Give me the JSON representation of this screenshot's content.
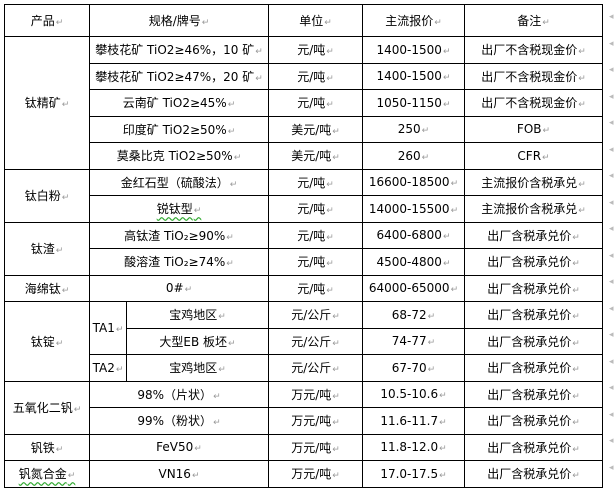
{
  "headers": [
    "产品",
    "规格/牌号",
    "单位",
    "主流报价",
    "备注"
  ],
  "rows": {
    "ti_conc": {
      "product": "钛精矿",
      "items": [
        {
          "spec": "攀枝花矿 TiO2≥46%，10 矿",
          "unit": "元/吨",
          "price": "1400-1500",
          "note": "出厂不含税现金价"
        },
        {
          "spec": "攀枝花矿 TiO2≥47%，20 矿",
          "unit": "元/吨",
          "price": "1400-1500",
          "note": "出厂不含税现金价"
        },
        {
          "spec": "云南矿 TiO2≥45%",
          "unit": "元/吨",
          "price": "1050-1150",
          "note": "出厂不含税现金价"
        },
        {
          "spec": "印度矿 TiO2≥50%",
          "unit": "美元/吨",
          "price": "250",
          "note": "FOB"
        },
        {
          "spec": "莫桑比克 TiO2≥50%",
          "unit": "美元/吨",
          "price": "260",
          "note": "CFR"
        }
      ]
    },
    "ti_white": {
      "product": "钛白粉",
      "items": [
        {
          "spec": "金红石型（硫酸法）",
          "unit": "元/吨",
          "price": "16600-18500",
          "note": "主流报价含税承兑"
        },
        {
          "spec": "锐钛型",
          "unit": "元/吨",
          "price": "14000-15500",
          "note": "主流报价含税承兑"
        }
      ]
    },
    "ti_slag": {
      "product": "钛渣",
      "items": [
        {
          "spec": "高钛渣 TiO₂≥90%",
          "unit": "元/吨",
          "price": "6400-6800",
          "note": "出厂含税承兑价"
        },
        {
          "spec": "酸溶渣 TiO₂≥74%",
          "unit": "元/吨",
          "price": "4500-4800",
          "note": "出厂含税承兑价"
        }
      ]
    },
    "sponge": {
      "product": "海绵钛",
      "items": [
        {
          "spec": "0#",
          "unit": "元/吨",
          "price": "64000-65000",
          "note": "出厂含税承兑价"
        }
      ]
    },
    "ingot": {
      "product": "钛锭",
      "grades": [
        "TA1",
        "TA2"
      ],
      "items": [
        {
          "spec": "宝鸡地区",
          "unit": "元/公斤",
          "price": "68-72",
          "note": "出厂含税承兑价"
        },
        {
          "spec": "大型EB 板坯",
          "unit": "元/公斤",
          "price": "74-77",
          "note": "出厂含税承兑价"
        },
        {
          "spec": "宝鸡地区",
          "unit": "元/公斤",
          "price": "67-70",
          "note": "出厂含税承兑价"
        }
      ]
    },
    "v2o5": {
      "product": "五氧化二钒",
      "items": [
        {
          "spec": "98%（片状）",
          "unit": "万元/吨",
          "price": "10.5-10.6",
          "note": "出厂含税承兑价"
        },
        {
          "spec": "99%（粉状）",
          "unit": "万元/吨",
          "price": "11.6-11.7",
          "note": "出厂含税承兑价"
        }
      ]
    },
    "fev": {
      "product": "钒铁",
      "items": [
        {
          "spec": "FeV50",
          "unit": "万元/吨",
          "price": "11.8-12.0",
          "note": "出厂含税承兑价"
        }
      ]
    },
    "vn": {
      "product": "钒氮合金",
      "items": [
        {
          "spec": "VN16",
          "unit": "万元/吨",
          "price": "17.0-17.5",
          "note": "出厂含税承兑价"
        }
      ]
    }
  }
}
